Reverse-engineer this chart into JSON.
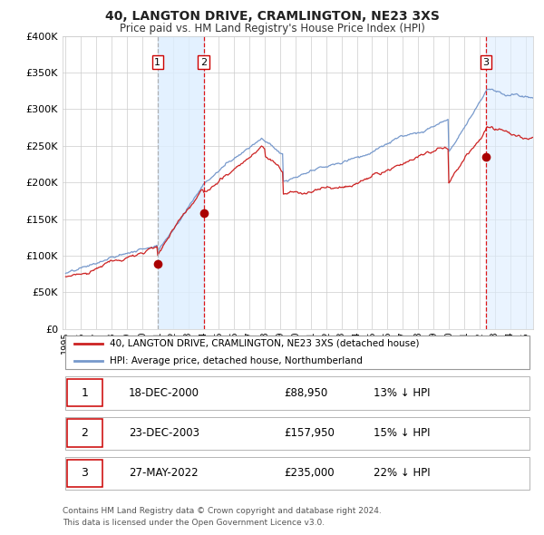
{
  "title": "40, LANGTON DRIVE, CRAMLINGTON, NE23 3XS",
  "subtitle": "Price paid vs. HM Land Registry's House Price Index (HPI)",
  "legend_line1": "40, LANGTON DRIVE, CRAMLINGTON, NE23 3XS (detached house)",
  "legend_line2": "HPI: Average price, detached house, Northumberland",
  "transactions": [
    {
      "label": "1",
      "date_num": 2001.0,
      "price": 88950,
      "date_str": "18-DEC-2000",
      "pct": "13%",
      "dir": "↓",
      "vline_color": "#aaaaaa",
      "vline_style": "dashed"
    },
    {
      "label": "2",
      "date_num": 2004.0,
      "price": 157950,
      "date_str": "23-DEC-2003",
      "pct": "15%",
      "dir": "↓",
      "vline_color": "#dd0000",
      "vline_style": "dashed"
    },
    {
      "label": "3",
      "date_num": 2022.42,
      "price": 235000,
      "date_str": "27-MAY-2022",
      "pct": "22%",
      "dir": "↓",
      "vline_color": "#dd0000",
      "vline_style": "dashed"
    }
  ],
  "table_rows": [
    [
      "1",
      "18-DEC-2000",
      "£88,950",
      "13% ↓ HPI"
    ],
    [
      "2",
      "23-DEC-2003",
      "£157,950",
      "15% ↓ HPI"
    ],
    [
      "3",
      "27-MAY-2022",
      "£235,000",
      "22% ↓ HPI"
    ]
  ],
  "footnote1": "Contains HM Land Registry data © Crown copyright and database right 2024.",
  "footnote2": "This data is licensed under the Open Government Licence v3.0.",
  "ylim_max": 400000,
  "xlim_start": 1994.8,
  "xlim_end": 2025.5,
  "hpi_color": "#7799cc",
  "price_color": "#cc2222",
  "marker_color": "#aa0000",
  "shade_color": "#ddeeff",
  "background_color": "#ffffff",
  "grid_color": "#cccccc",
  "yticks": [
    0,
    50000,
    100000,
    150000,
    200000,
    250000,
    300000,
    350000,
    400000
  ],
  "xtick_years": [
    1995,
    1996,
    1997,
    1998,
    1999,
    2000,
    2001,
    2002,
    2003,
    2004,
    2005,
    2006,
    2007,
    2008,
    2009,
    2010,
    2011,
    2012,
    2013,
    2014,
    2015,
    2016,
    2017,
    2018,
    2019,
    2020,
    2021,
    2022,
    2023,
    2024,
    2025
  ]
}
